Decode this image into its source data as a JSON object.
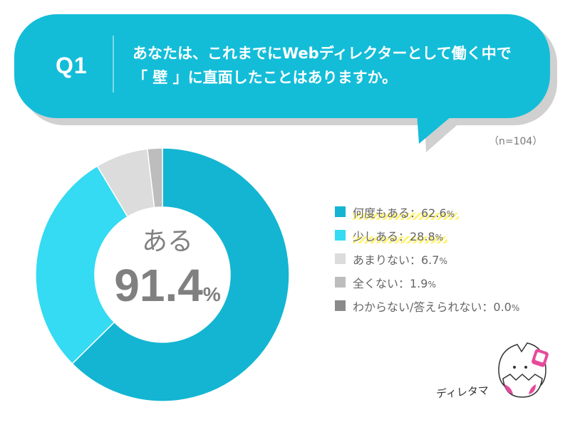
{
  "header": {
    "question_number": "Q1",
    "question_line1": "あなたは、これまでにWebディレクターとして働く中で",
    "question_line2": "「 壁 」に直面したことはありますか。",
    "sample_size": "（n=104）"
  },
  "center": {
    "label": "ある",
    "value": "91.4",
    "unit": "%"
  },
  "colors": {
    "bubble": "#13bdd8",
    "bubble_shadow": "#c8c8c8",
    "highlight": "#fff27a"
  },
  "chart_data": {
    "type": "pie",
    "subtype": "donut",
    "center_text": "ある 91.4%",
    "series": [
      {
        "name": "何度もある",
        "value": 62.6,
        "color": "#13b5d2",
        "legend": "何度もある：62.6",
        "highlighted": true
      },
      {
        "name": "少しある",
        "value": 28.8,
        "color": "#34dbf2",
        "legend": "少しある：28.8",
        "highlighted": true
      },
      {
        "name": "あまりない",
        "value": 6.7,
        "color": "#dcdcdc",
        "legend": "あまりない：6.7",
        "highlighted": false
      },
      {
        "name": "全くない",
        "value": 1.9,
        "color": "#bdbdbd",
        "legend": "全くない：1.9",
        "highlighted": false
      },
      {
        "name": "わからない/答えられない",
        "value": 0.0,
        "color": "#8a8a8a",
        "legend": "わからない/答えられない：0.0",
        "highlighted": false
      }
    ],
    "unit": "%",
    "legend_position": "right"
  },
  "mascot": {
    "name": "ディレタマ",
    "icon": "cracked-egg-mascot-icon"
  }
}
